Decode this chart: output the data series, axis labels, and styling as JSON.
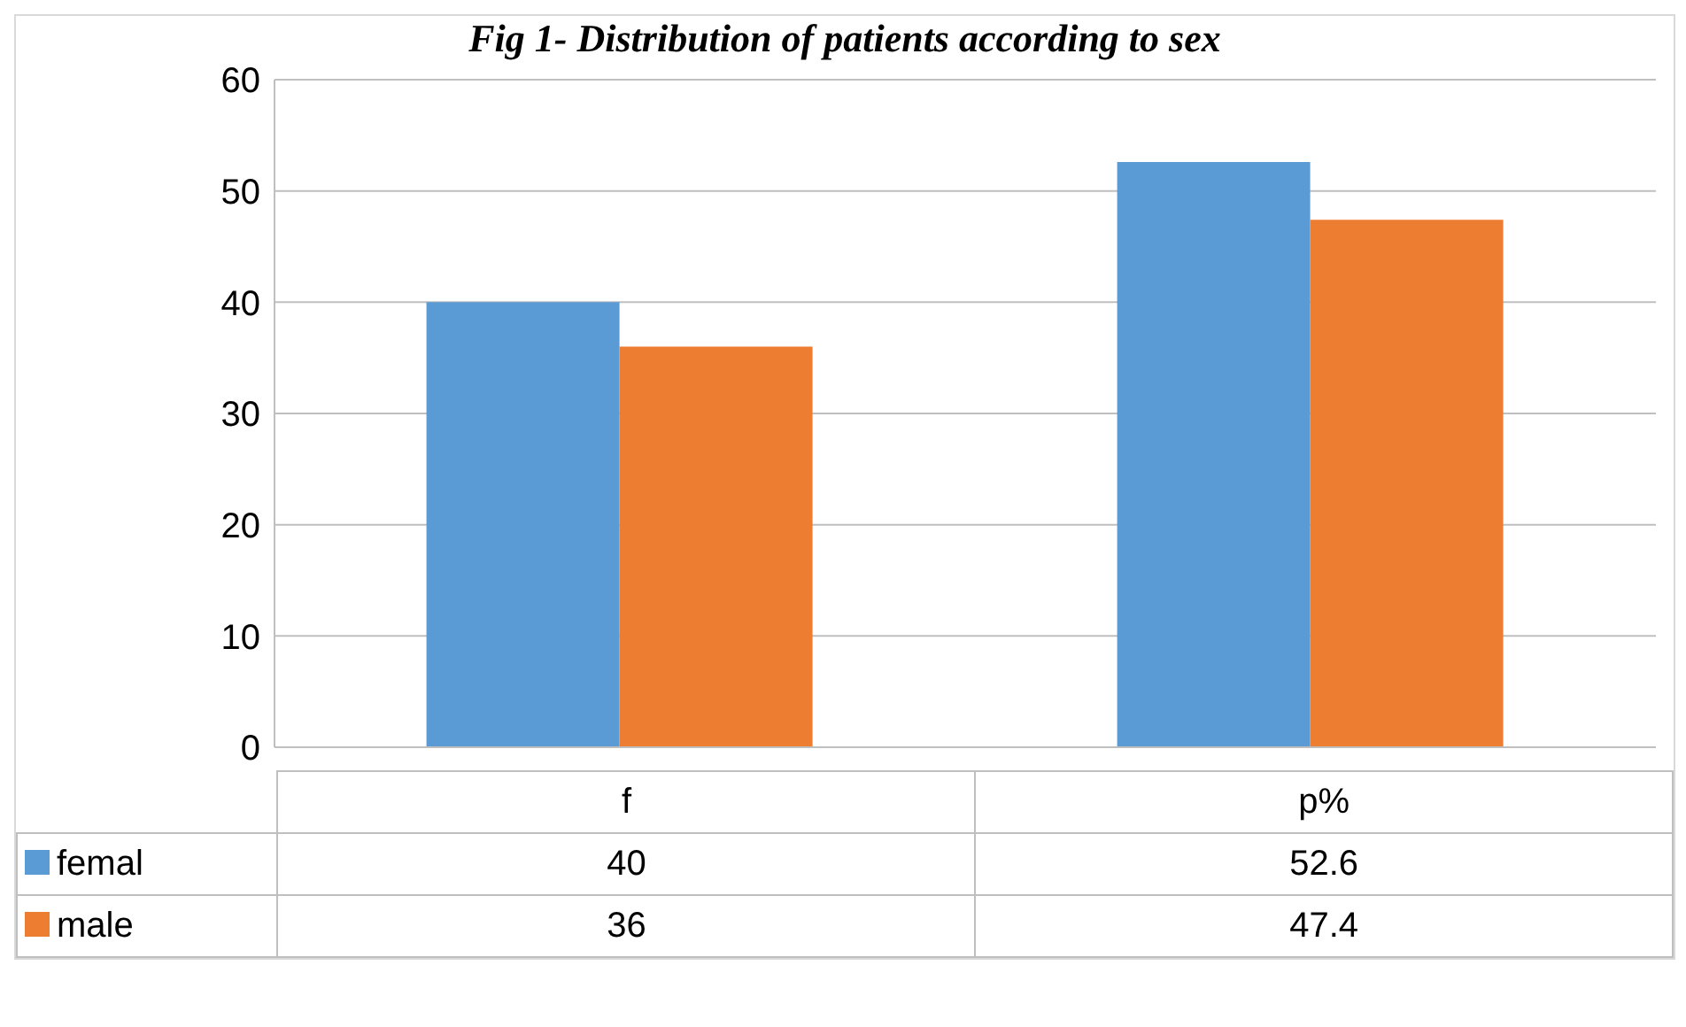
{
  "chart_data": {
    "type": "bar",
    "title": "Fig 1- Distribution of patients according to sex",
    "categories": [
      "f",
      "p%"
    ],
    "series": [
      {
        "name": "femal",
        "color": "#5b9bd5",
        "values": [
          40,
          52.6
        ]
      },
      {
        "name": "male",
        "color": "#ed7d31",
        "values": [
          36,
          47.4
        ]
      }
    ],
    "ylim": [
      0,
      60
    ],
    "yticks": [
      0,
      10,
      20,
      30,
      40,
      50,
      60
    ],
    "grid": "y",
    "legend": "bottom",
    "data_labels": true
  }
}
